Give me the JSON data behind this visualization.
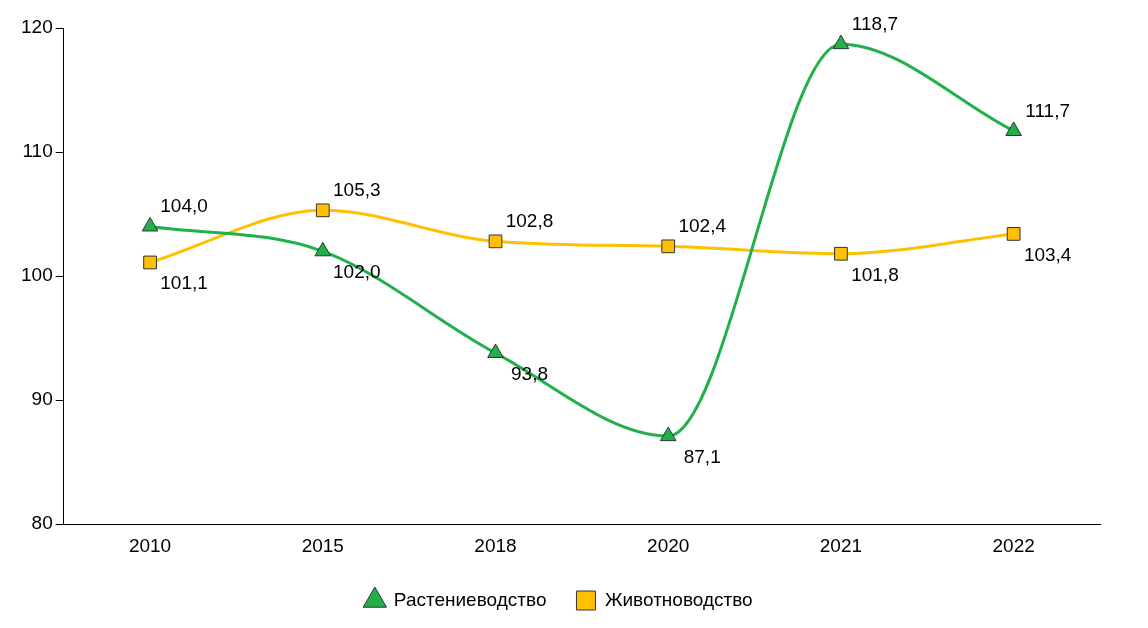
{
  "chart_data": {
    "type": "line",
    "categories": [
      "2010",
      "2015",
      "2018",
      "2020",
      "2021",
      "2022"
    ],
    "series": [
      {
        "name": "Растениеводство",
        "color": "#22b04b",
        "marker": "triangle",
        "values": [
          104.0,
          102.0,
          93.8,
          87.1,
          118.7,
          111.7
        ],
        "value_labels": [
          "104,0",
          "102,0",
          "93,8",
          "87,1",
          "118,7",
          "111,7"
        ]
      },
      {
        "name": "Животноводство",
        "color": "#ffc000",
        "marker": "square",
        "values": [
          101.1,
          105.3,
          102.8,
          102.4,
          101.8,
          103.4
        ],
        "value_labels": [
          "101,1",
          "105,3",
          "102,8",
          "102,4",
          "101,8",
          "103,4"
        ]
      }
    ],
    "ylim": [
      80,
      120
    ],
    "yticks": [
      80,
      90,
      100,
      110,
      120
    ],
    "grid": false,
    "legend": "bottom"
  }
}
